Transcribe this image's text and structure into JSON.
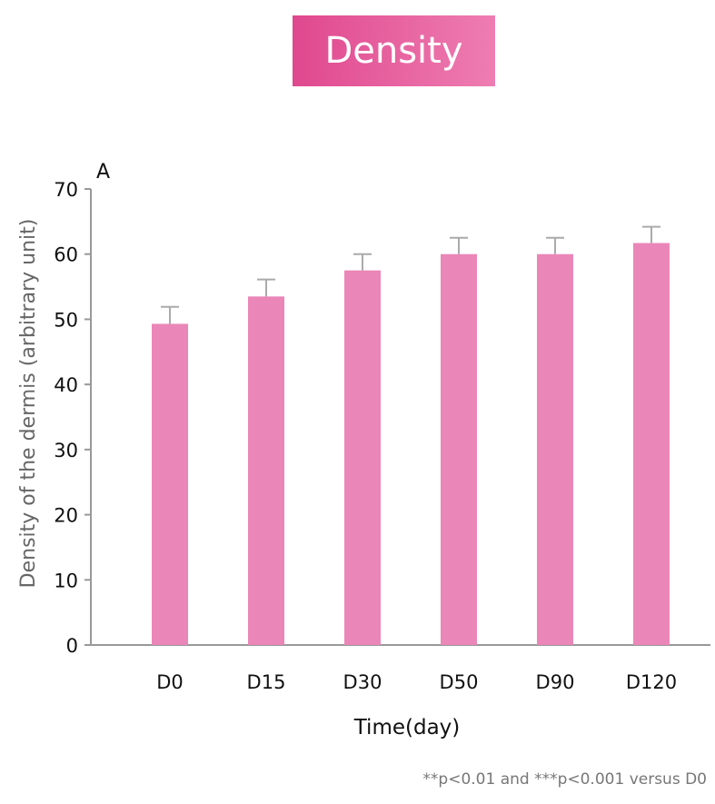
{
  "title": "Density",
  "footnote": "**p<0.01 and ***p<0.001 versus D0",
  "chart_data": {
    "type": "bar",
    "panel_label": "A",
    "categories": [
      "D0",
      "D15",
      "D30",
      "D50",
      "D90",
      "D120"
    ],
    "values": [
      49.3,
      53.5,
      57.5,
      60.0,
      60.0,
      61.7
    ],
    "errors": [
      2.6,
      2.6,
      2.5,
      2.5,
      2.5,
      2.5
    ],
    "xlabel": "Time(day)",
    "ylabel": "Density of the dermis (arbitrary unit)",
    "ylim": [
      0,
      70
    ],
    "yticks": [
      0,
      10,
      20,
      30,
      40,
      50,
      60,
      70
    ],
    "grid": false,
    "bar_color": "#eb86b8",
    "error_bar_color": "#aaaaaa",
    "axis_color": "#999999"
  }
}
